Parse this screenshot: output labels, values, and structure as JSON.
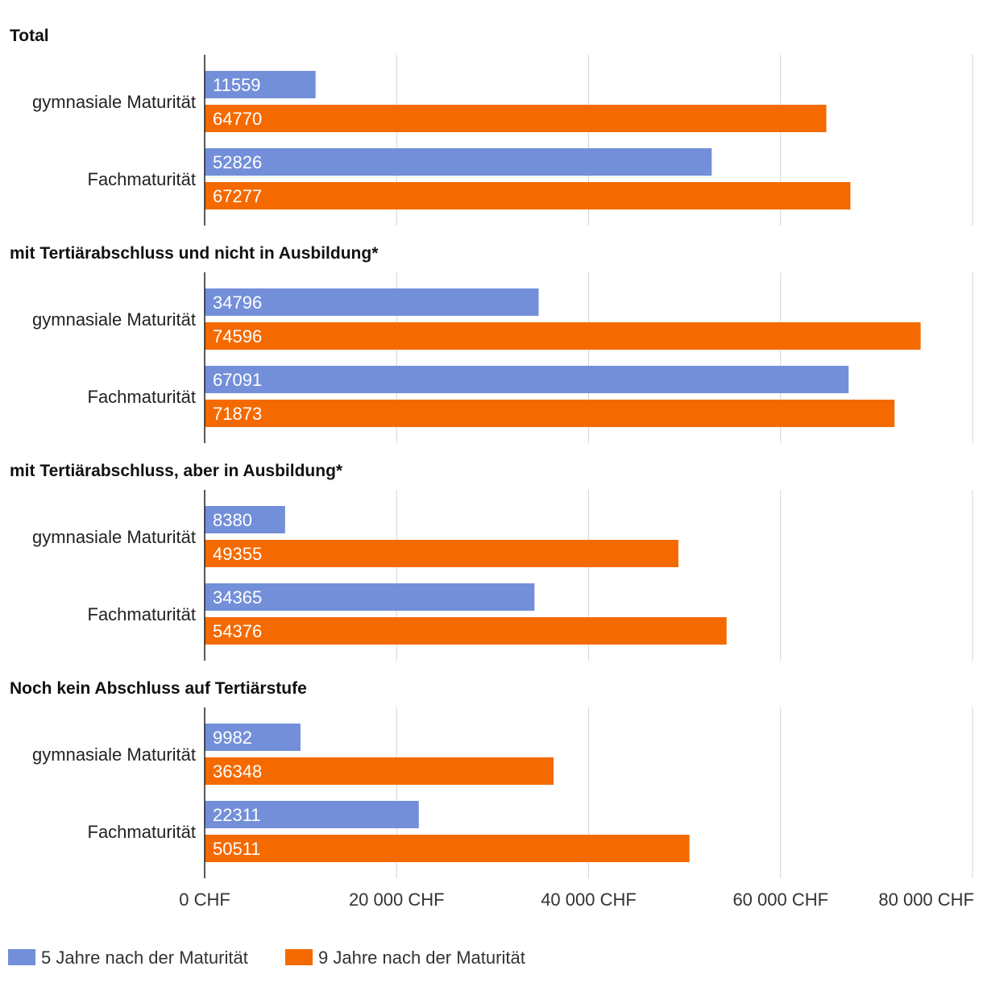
{
  "chart_data": {
    "type": "bar",
    "orientation": "horizontal",
    "xlim": [
      0,
      80000
    ],
    "x_ticks": [
      "0 CHF",
      "20 000 CHF",
      "40 000 CHF",
      "60 000 CHF",
      "80 000 CHF"
    ],
    "x_tick_values": [
      0,
      20000,
      40000,
      60000,
      80000
    ],
    "grid": true,
    "legend_position": "bottom-left",
    "series_meta": [
      {
        "name": "5 Jahre nach der Maturität",
        "color": "#738fd9"
      },
      {
        "name": "9 Jahre nach der Maturität",
        "color": "#f46a00"
      }
    ],
    "panels": [
      {
        "title": "Total",
        "categories": [
          "gymnasiale Maturität",
          "Fachmaturität"
        ],
        "series": [
          {
            "name": "5 Jahre nach der Maturität",
            "values": [
              11559,
              52826
            ]
          },
          {
            "name": "9 Jahre nach der Maturität",
            "values": [
              64770,
              67277
            ]
          }
        ]
      },
      {
        "title": "mit Tertiärabschluss und nicht in Ausbildung*",
        "categories": [
          "gymnasiale Maturität",
          "Fachmaturität"
        ],
        "series": [
          {
            "name": "5 Jahre nach der Maturität",
            "values": [
              34796,
              67091
            ]
          },
          {
            "name": "9 Jahre nach der Maturität",
            "values": [
              74596,
              71873
            ]
          }
        ]
      },
      {
        "title": "mit Tertiärabschluss, aber in Ausbildung*",
        "categories": [
          "gymnasiale Maturität",
          "Fachmaturität"
        ],
        "series": [
          {
            "name": "5 Jahre nach der Maturität",
            "values": [
              8380,
              34365
            ]
          },
          {
            "name": "9 Jahre nach der Maturität",
            "values": [
              49355,
              54376
            ]
          }
        ]
      },
      {
        "title": "Noch kein Abschluss auf Tertiärstufe",
        "categories": [
          "gymnasiale Maturität",
          "Fachmaturität"
        ],
        "series": [
          {
            "name": "5 Jahre nach der Maturität",
            "values": [
              9982,
              22311
            ]
          },
          {
            "name": "9 Jahre nach der Maturität",
            "values": [
              36348,
              50511
            ]
          }
        ]
      }
    ]
  }
}
